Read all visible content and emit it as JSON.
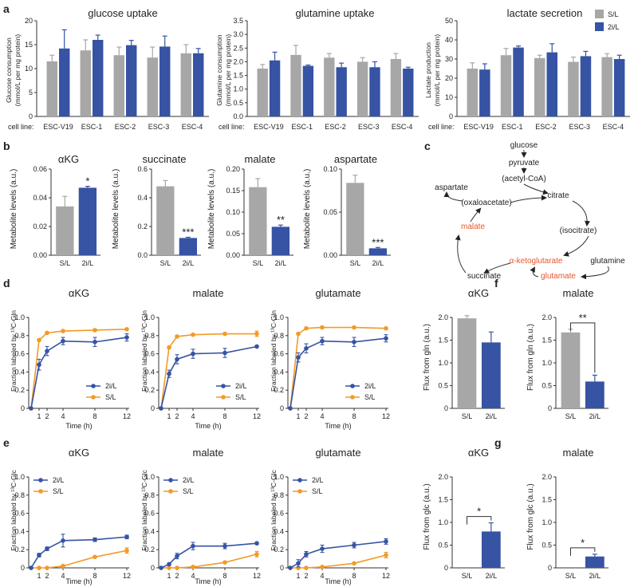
{
  "colors": {
    "gray": "#a7a7a7",
    "blue": "#3653a4",
    "orange": "#f39a26",
    "red": "#e8552b"
  },
  "panel_labels": {
    "a": "a",
    "b": "b",
    "c": "c",
    "d": "d",
    "e": "e",
    "f": "f",
    "g": "g"
  },
  "panel_a": {
    "cell_line_label": "cell line:",
    "legend": [
      "S/L",
      "2i/L"
    ],
    "charts": [
      {
        "title": "glucose uptake",
        "ylabel_line1": "Glucose consumption",
        "ylabel_line2": "(mmol/L per mg protein)",
        "yticks": [
          "0",
          "5",
          "10",
          "15",
          "20"
        ],
        "categories": [
          "ESC-V19",
          "ESC-1",
          "ESC-2",
          "ESC-3",
          "ESC-4"
        ]
      },
      {
        "title": "glutamine uptake",
        "ylabel_line1": "Glutamine consumption",
        "ylabel_line2": "(mmol/L per mg protein)",
        "yticks": [
          "0.0",
          "0.5",
          "1.0",
          "1.5",
          "2.0",
          "2.5",
          "3.0",
          "3.5"
        ],
        "categories": [
          "ESC-V19",
          "ESC-1",
          "ESC-2",
          "ESC-3",
          "ESC-4"
        ]
      },
      {
        "title": "lactate secretion",
        "ylabel_line1": "Lactate production",
        "ylabel_line2": "(mmol/L per mg protein)",
        "yticks": [
          "0",
          "10",
          "20",
          "30",
          "40",
          "50"
        ],
        "categories": [
          "ESC-V19",
          "ESC-1",
          "ESC-2",
          "ESC-3",
          "ESC-4"
        ]
      }
    ]
  },
  "panel_b": {
    "ylabel": "Metabolite levels (a.u.)",
    "charts": [
      {
        "title": "αKG",
        "yticks": [
          "0.00",
          "0.02",
          "0.04",
          "0.06"
        ],
        "categories": [
          "S/L",
          "2i/L"
        ],
        "sig": "*"
      },
      {
        "title": "succinate",
        "yticks": [
          "0.0",
          "0.2",
          "0.4",
          "0.6"
        ],
        "categories": [
          "S/L",
          "2i/L"
        ],
        "sig": "***"
      },
      {
        "title": "malate",
        "yticks": [
          "0.00",
          "0.05",
          "0.10",
          "0.15",
          "0.20"
        ],
        "categories": [
          "S/L",
          "2i/L"
        ],
        "sig": "**"
      },
      {
        "title": "aspartate",
        "yticks": [
          "0.00",
          "0.05",
          "0.10"
        ],
        "categories": [
          "S/L",
          "2i/L"
        ],
        "sig": "***"
      }
    ]
  },
  "panel_c": {
    "glucose": "glucose",
    "pyruvate": "pyruvate",
    "acetyl": "(acetyl-CoA)",
    "aspartate": "aspartate",
    "oxaloacetate": "(oxaloacetate)",
    "citrate": "citrate",
    "malate": "malate",
    "isocitrate": "(isocitrate)",
    "akg": "α-ketoglutarate",
    "glutamine": "glutamine",
    "succinate": "succinate",
    "glutamate": "glutamate"
  },
  "panel_d": {
    "ylabel": "Fraction labeled by ¹³C-Gln",
    "xlabel": "Time (h)",
    "legend": [
      "2i/L",
      "S/L"
    ],
    "yticks": [
      "0",
      "0.2",
      "0.4",
      "0.6",
      "0.8",
      "1.0"
    ],
    "xticks": [
      "1",
      "2",
      "4",
      "8",
      "12"
    ],
    "charts": [
      {
        "title": "αKG"
      },
      {
        "title": "malate"
      },
      {
        "title": "glutamate"
      }
    ]
  },
  "panel_e": {
    "ylabel": "Fraction labeled by ¹³C-Glc",
    "xlabel": "Time (h)",
    "legend": [
      "2i/L",
      "S/L"
    ],
    "yticks": [
      "0",
      "0.2",
      "0.4",
      "0.6",
      "0.8",
      "1.0"
    ],
    "xticks": [
      "1",
      "2",
      "4",
      "8",
      "12"
    ],
    "charts": [
      {
        "title": "αKG"
      },
      {
        "title": "malate"
      },
      {
        "title": "glutamate"
      }
    ]
  },
  "panel_f": {
    "ylabel": "Flux from gln (a.u.)",
    "charts": [
      {
        "title": "αKG",
        "yticks": [
          "0",
          "0.5",
          "1.0",
          "1.5",
          "2.0"
        ],
        "categories": [
          "S/L",
          "2i/L"
        ],
        "sig": ""
      },
      {
        "title": "malate",
        "yticks": [
          "0",
          "0.5",
          "1.0",
          "1.5",
          "2.0"
        ],
        "categories": [
          "S/L",
          "2i/L"
        ],
        "sig": "**"
      }
    ]
  },
  "panel_g": {
    "ylabel": "Flux from glc (a.u.)",
    "charts": [
      {
        "title": "αKG",
        "yticks": [
          "0",
          "0.5",
          "1.0",
          "1.5",
          "2.0"
        ],
        "categories": [
          "S/L",
          "2i/L"
        ],
        "sig": "*"
      },
      {
        "title": "malate",
        "yticks": [
          "0",
          "0.5",
          "1.0",
          "1.5",
          "2.0"
        ],
        "categories": [
          "S/L",
          "2i/L"
        ],
        "sig": "*"
      }
    ]
  },
  "chart_data": [
    {
      "id": "a1",
      "type": "bar",
      "title": "glucose uptake",
      "ylabel": "Glucose consumption (mmol/L per mg protein)",
      "ylim": [
        0,
        20
      ],
      "categories": [
        "ESC-V19",
        "ESC-1",
        "ESC-2",
        "ESC-3",
        "ESC-4"
      ],
      "series": [
        {
          "name": "S/L",
          "values": [
            11.5,
            13.8,
            12.8,
            12.3,
            13.2
          ],
          "errors": [
            1.3,
            2.2,
            1.7,
            2.2,
            1.8
          ]
        },
        {
          "name": "2i/L",
          "values": [
            14.2,
            16.0,
            14.9,
            14.6,
            13.2
          ],
          "errors": [
            3.9,
            1.0,
            1.0,
            2.2,
            1.0
          ]
        }
      ]
    },
    {
      "id": "a2",
      "type": "bar",
      "title": "glutamine uptake",
      "ylabel": "Glutamine consumption (mmol/L per mg protein)",
      "ylim": [
        0,
        3.5
      ],
      "categories": [
        "ESC-V19",
        "ESC-1",
        "ESC-2",
        "ESC-3",
        "ESC-4"
      ],
      "series": [
        {
          "name": "S/L",
          "values": [
            1.75,
            2.25,
            2.15,
            2.0,
            2.1
          ],
          "errors": [
            0.15,
            0.35,
            0.15,
            0.15,
            0.2
          ]
        },
        {
          "name": "2i/L",
          "values": [
            2.05,
            1.85,
            1.8,
            1.8,
            1.75
          ],
          "errors": [
            0.3,
            0.03,
            0.15,
            0.2,
            0.05
          ]
        }
      ]
    },
    {
      "id": "a3",
      "type": "bar",
      "title": "lactate secretion",
      "ylabel": "Lactate production (mmol/L per mg protein)",
      "ylim": [
        0,
        50
      ],
      "categories": [
        "ESC-V19",
        "ESC-1",
        "ESC-2",
        "ESC-3",
        "ESC-4"
      ],
      "series": [
        {
          "name": "S/L",
          "values": [
            25.0,
            32.0,
            30.5,
            28.5,
            31.0
          ],
          "errors": [
            3.0,
            3.5,
            1.5,
            2.5,
            1.8
          ]
        },
        {
          "name": "2i/L",
          "values": [
            24.5,
            36.0,
            33.5,
            31.5,
            30.0
          ],
          "errors": [
            3.0,
            0.8,
            4.5,
            2.5,
            2.0
          ]
        }
      ]
    },
    {
      "id": "b1",
      "type": "bar",
      "title": "αKG",
      "ylabel": "Metabolite levels (a.u.)",
      "ylim": [
        0,
        0.06
      ],
      "categories": [
        "S/L",
        "2i/L"
      ],
      "values": [
        0.034,
        0.047
      ],
      "errors": [
        0.007,
        0.001
      ]
    },
    {
      "id": "b2",
      "type": "bar",
      "title": "succinate",
      "ylabel": "Metabolite levels (a.u.)",
      "ylim": [
        0,
        0.6
      ],
      "categories": [
        "S/L",
        "2i/L"
      ],
      "values": [
        0.48,
        0.12
      ],
      "errors": [
        0.04,
        0.005
      ]
    },
    {
      "id": "b3",
      "type": "bar",
      "title": "malate",
      "ylabel": "Metabolite levels (a.u.)",
      "ylim": [
        0,
        0.2
      ],
      "categories": [
        "S/L",
        "2i/L"
      ],
      "values": [
        0.158,
        0.066
      ],
      "errors": [
        0.02,
        0.004
      ]
    },
    {
      "id": "b4",
      "type": "bar",
      "title": "aspartate",
      "ylabel": "Metabolite levels (a.u.)",
      "ylim": [
        0,
        0.1
      ],
      "categories": [
        "S/L",
        "2i/L"
      ],
      "values": [
        0.084,
        0.008
      ],
      "errors": [
        0.009,
        0.001
      ]
    },
    {
      "id": "d1",
      "type": "line",
      "title": "αKG",
      "xlabel": "Time (h)",
      "ylabel": "Fraction labeled by ¹³C-Gln",
      "xlim": [
        0,
        12
      ],
      "ylim": [
        0,
        1.0
      ],
      "x": [
        0,
        1,
        2,
        4,
        8,
        12
      ],
      "series": [
        {
          "name": "2i/L",
          "values": [
            0,
            0.48,
            0.63,
            0.74,
            0.73,
            0.78
          ],
          "errors": [
            0,
            0.06,
            0.05,
            0.04,
            0.05,
            0.04
          ]
        },
        {
          "name": "S/L",
          "values": [
            0,
            0.75,
            0.83,
            0.85,
            0.86,
            0.87
          ],
          "errors": [
            0,
            0.01,
            0.01,
            0.01,
            0.01,
            0.01
          ]
        }
      ]
    },
    {
      "id": "d2",
      "type": "line",
      "title": "malate",
      "xlabel": "Time (h)",
      "ylabel": "Fraction labeled by ¹³C-Gln",
      "xlim": [
        0,
        12
      ],
      "ylim": [
        0,
        1.0
      ],
      "x": [
        0,
        1,
        2,
        4,
        8,
        12
      ],
      "series": [
        {
          "name": "2i/L",
          "values": [
            0,
            0.38,
            0.54,
            0.6,
            0.61,
            0.68
          ],
          "errors": [
            0,
            0.04,
            0.05,
            0.05,
            0.05,
            0.01
          ]
        },
        {
          "name": "S/L",
          "values": [
            0,
            0.67,
            0.79,
            0.81,
            0.82,
            0.82
          ],
          "errors": [
            0,
            0.01,
            0.01,
            0.01,
            0.01,
            0.03
          ]
        }
      ]
    },
    {
      "id": "d3",
      "type": "line",
      "title": "glutamate",
      "xlabel": "Time (h)",
      "ylabel": "Fraction labeled by ¹³C-Gln",
      "xlim": [
        0,
        12
      ],
      "ylim": [
        0,
        1.0
      ],
      "x": [
        0,
        1,
        2,
        4,
        8,
        12
      ],
      "series": [
        {
          "name": "2i/L",
          "values": [
            0,
            0.56,
            0.66,
            0.74,
            0.73,
            0.77
          ],
          "errors": [
            0,
            0.05,
            0.05,
            0.04,
            0.05,
            0.04
          ]
        },
        {
          "name": "S/L",
          "values": [
            0,
            0.82,
            0.88,
            0.89,
            0.89,
            0.88
          ],
          "errors": [
            0,
            0.01,
            0.01,
            0.01,
            0.01,
            0.01
          ]
        }
      ]
    },
    {
      "id": "e1",
      "type": "line",
      "title": "αKG",
      "xlabel": "Time (h)",
      "ylabel": "Fraction labeled by ¹³C-Glc",
      "xlim": [
        0,
        12
      ],
      "ylim": [
        0,
        1.0
      ],
      "x": [
        0,
        1,
        2,
        4,
        8,
        12
      ],
      "series": [
        {
          "name": "2i/L",
          "values": [
            0,
            0.14,
            0.21,
            0.3,
            0.31,
            0.34
          ],
          "errors": [
            0,
            0.02,
            0.02,
            0.07,
            0.02,
            0.02
          ]
        },
        {
          "name": "S/L",
          "values": [
            0,
            0,
            0,
            0.02,
            0.12,
            0.19
          ],
          "errors": [
            0,
            0,
            0,
            0.01,
            0.01,
            0.03
          ]
        }
      ]
    },
    {
      "id": "e2",
      "type": "line",
      "title": "malate",
      "xlabel": "Time (h)",
      "ylabel": "Fraction labeled by ¹³C-Glc",
      "xlim": [
        0,
        12
      ],
      "ylim": [
        0,
        1.0
      ],
      "x": [
        0,
        1,
        2,
        4,
        8,
        12
      ],
      "series": [
        {
          "name": "2i/L",
          "values": [
            0,
            0.04,
            0.13,
            0.24,
            0.24,
            0.27
          ],
          "errors": [
            0,
            0.01,
            0.03,
            0.04,
            0.03,
            0.01
          ]
        },
        {
          "name": "S/L",
          "values": [
            0,
            0,
            0,
            0.01,
            0.06,
            0.15
          ],
          "errors": [
            0,
            0,
            0,
            0.01,
            0.01,
            0.03
          ]
        }
      ]
    },
    {
      "id": "e3",
      "type": "line",
      "title": "glutamate",
      "xlabel": "Time (h)",
      "ylabel": "Fraction labeled by ¹³C-Glc",
      "xlim": [
        0,
        12
      ],
      "ylim": [
        0,
        1.0
      ],
      "x": [
        0,
        1,
        2,
        4,
        8,
        12
      ],
      "series": [
        {
          "name": "2i/L",
          "values": [
            0,
            0.05,
            0.15,
            0.21,
            0.25,
            0.29
          ],
          "errors": [
            0,
            0.04,
            0.03,
            0.04,
            0.03,
            0.03
          ]
        },
        {
          "name": "S/L",
          "values": [
            0,
            0,
            0,
            0.01,
            0.05,
            0.14
          ],
          "errors": [
            0,
            0,
            0,
            0.01,
            0.01,
            0.03
          ]
        }
      ]
    },
    {
      "id": "f1",
      "type": "bar",
      "title": "αKG",
      "ylabel": "Flux from gln (a.u.)",
      "ylim": [
        0,
        2.0
      ],
      "categories": [
        "S/L",
        "2i/L"
      ],
      "values": [
        1.98,
        1.45
      ],
      "errors": [
        0.06,
        0.23
      ]
    },
    {
      "id": "f2",
      "type": "bar",
      "title": "malate",
      "ylabel": "Flux from gln (a.u.)",
      "ylim": [
        0,
        2.0
      ],
      "categories": [
        "S/L",
        "2i/L"
      ],
      "values": [
        1.67,
        0.59
      ],
      "errors": [
        0.07,
        0.14
      ]
    },
    {
      "id": "g1",
      "type": "bar",
      "title": "αKG",
      "ylabel": "Flux from glc (a.u.)",
      "ylim": [
        0,
        2.0
      ],
      "categories": [
        "S/L",
        "2i/L"
      ],
      "values": [
        0,
        0.8
      ],
      "errors": [
        0,
        0.19
      ]
    },
    {
      "id": "g2",
      "type": "bar",
      "title": "malate",
      "ylabel": "Flux from glc (a.u.)",
      "ylim": [
        0,
        2.0
      ],
      "categories": [
        "S/L",
        "2i/L"
      ],
      "values": [
        0,
        0.25
      ],
      "errors": [
        0,
        0.05
      ]
    }
  ]
}
